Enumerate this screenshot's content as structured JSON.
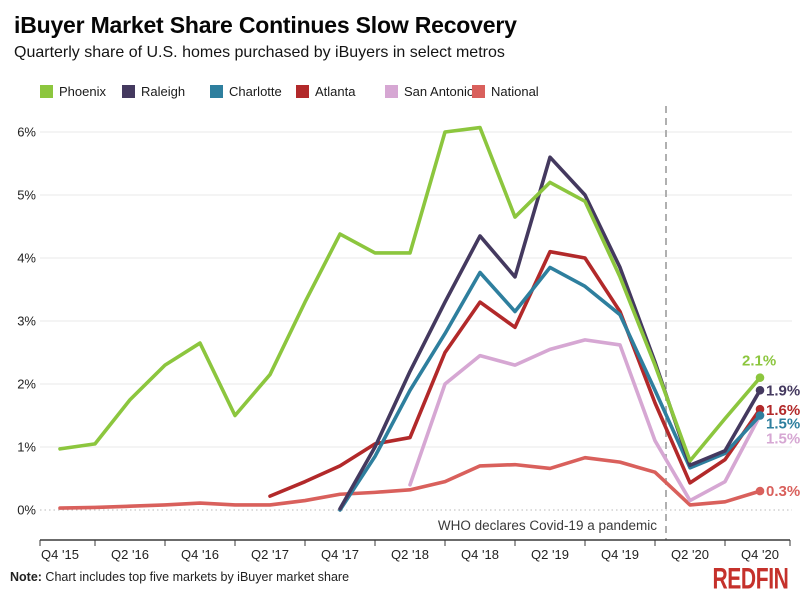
{
  "header": {
    "title": "iBuyer Market Share Continues Slow Recovery",
    "subtitle": "Quarterly share of U.S. homes purchased by iBuyers in select metros"
  },
  "legend": [
    {
      "label": "Phoenix",
      "color": "#8cc63e"
    },
    {
      "label": "Raleigh",
      "color": "#44395f"
    },
    {
      "label": "Charlotte",
      "color": "#2e7f9e"
    },
    {
      "label": "Atlanta",
      "color": "#b2292a"
    },
    {
      "label": "San Antonio",
      "color": "#d6a7d3"
    },
    {
      "label": "National",
      "color": "#d9605c"
    }
  ],
  "chart_data": {
    "type": "line",
    "title": "iBuyer Market Share Continues Slow Recovery",
    "ylabel": "",
    "xlabel": "",
    "ylim": [
      0,
      6
    ],
    "y_tick_labels": [
      "0%",
      "1%",
      "2%",
      "3%",
      "4%",
      "5%",
      "6%"
    ],
    "x_tick_labels_shown": [
      "Q4 '15",
      "Q2 '16",
      "Q4 '16",
      "Q2 '17",
      "Q4 '17",
      "Q2 '18",
      "Q4 '18",
      "Q2 '19",
      "Q4 '19",
      "Q2 '20",
      "Q4 '20"
    ],
    "categories": [
      "Q4 '15",
      "Q1 '16",
      "Q2 '16",
      "Q3 '16",
      "Q4 '16",
      "Q1 '17",
      "Q2 '17",
      "Q3 '17",
      "Q4 '17",
      "Q1 '18",
      "Q2 '18",
      "Q3 '18",
      "Q4 '18",
      "Q1 '19",
      "Q2 '19",
      "Q3 '19",
      "Q4 '19",
      "Q1 '20",
      "Q2 '20",
      "Q3 '20",
      "Q4 '20"
    ],
    "grid": "horizontal",
    "legend_position": "top",
    "series": [
      {
        "name": "National",
        "color": "#d9605c",
        "values": [
          0.03,
          0.04,
          0.06,
          0.08,
          0.11,
          0.08,
          0.08,
          0.15,
          0.25,
          0.28,
          0.32,
          0.45,
          0.7,
          0.72,
          0.66,
          0.83,
          0.76,
          0.6,
          0.08,
          0.13,
          0.3
        ]
      },
      {
        "name": "San Antonio",
        "color": "#d6a7d3",
        "values": [
          null,
          null,
          null,
          null,
          null,
          null,
          null,
          null,
          null,
          null,
          0.4,
          2.0,
          2.45,
          2.3,
          2.55,
          2.7,
          2.62,
          1.1,
          0.15,
          0.45,
          1.5
        ]
      },
      {
        "name": "Atlanta",
        "color": "#b2292a",
        "values": [
          null,
          null,
          null,
          null,
          null,
          null,
          0.22,
          0.45,
          0.7,
          1.05,
          1.15,
          2.5,
          3.3,
          2.9,
          4.1,
          4.0,
          3.15,
          1.7,
          0.43,
          0.8,
          1.6
        ]
      },
      {
        "name": "Charlotte",
        "color": "#2e7f9e",
        "values": [
          null,
          null,
          null,
          null,
          null,
          null,
          null,
          null,
          0.0,
          0.85,
          1.9,
          2.8,
          3.77,
          3.15,
          3.85,
          3.55,
          3.1,
          1.9,
          0.67,
          0.9,
          1.5
        ]
      },
      {
        "name": "Raleigh",
        "color": "#44395f",
        "values": [
          null,
          null,
          null,
          null,
          null,
          null,
          null,
          null,
          0.02,
          1.0,
          2.2,
          3.3,
          4.35,
          3.7,
          5.6,
          5.0,
          3.85,
          2.35,
          0.71,
          0.94,
          1.9
        ]
      },
      {
        "name": "Phoenix",
        "color": "#8cc63e",
        "values": [
          0.97,
          1.05,
          1.75,
          2.3,
          2.65,
          1.5,
          2.15,
          3.3,
          4.38,
          4.08,
          4.08,
          6.0,
          6.07,
          4.65,
          5.2,
          4.9,
          3.7,
          2.3,
          0.78,
          1.45,
          2.1
        ]
      }
    ],
    "end_labels": [
      {
        "series": "Phoenix",
        "text": "2.1%",
        "color": "#8cc63e",
        "x": 742,
        "dy": -12
      },
      {
        "series": "Raleigh",
        "text": "1.9%",
        "color": "#44395f",
        "x": 766,
        "dy": 5
      },
      {
        "series": "Atlanta",
        "text": "1.6%",
        "color": "#b2292a",
        "x": 766,
        "dy": 6
      },
      {
        "series": "Charlotte",
        "text": "1.5%",
        "color": "#2e7f9e",
        "x": 766,
        "dy": 13
      },
      {
        "series": "San Antonio",
        "text": "1.5%",
        "color": "#d6a7d3",
        "x": 766,
        "dy": 28
      },
      {
        "series": "National",
        "text": "0.3%",
        "color": "#d9605c",
        "x": 766,
        "dy": 5
      }
    ],
    "annotation": {
      "text": "WHO declares Covid-19 a pandemic",
      "position": "Q1 '20",
      "line_style": "dashed"
    }
  },
  "note": {
    "label": "Note:",
    "text": " Chart includes top five markets by iBuyer market share"
  },
  "brand": {
    "logo_text": "REDFIN",
    "color": "#c5312b"
  }
}
